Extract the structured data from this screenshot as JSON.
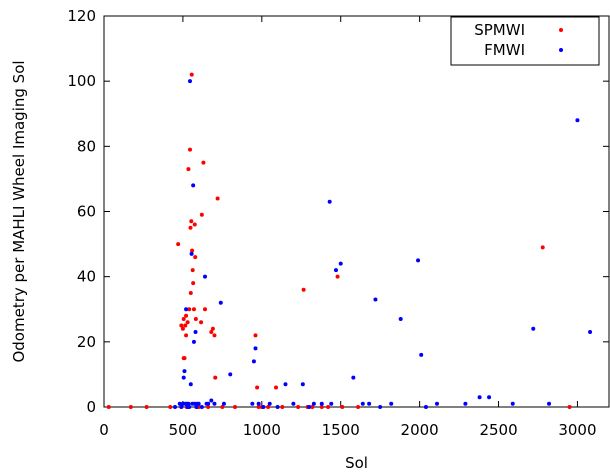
{
  "chart_data": {
    "type": "scatter",
    "title": "",
    "xlabel": "Sol",
    "ylabel": "Odometry per MAHLI Wheel Imaging Sol",
    "xlim": [
      0,
      3200
    ],
    "ylim": [
      0,
      120
    ],
    "xticks": [
      "0",
      "500",
      "1000",
      "1500",
      "2000",
      "2500",
      "3000"
    ],
    "yticks": [
      "0",
      "20",
      "40",
      "60",
      "80",
      "100",
      "120"
    ],
    "legend_position": "top-right",
    "grid": false,
    "series": [
      {
        "name": "SPMWI",
        "color": "#ff0000",
        "points": [
          [
            30,
            0
          ],
          [
            170,
            0
          ],
          [
            270,
            0
          ],
          [
            420,
            0
          ],
          [
            470,
            50
          ],
          [
            490,
            25
          ],
          [
            500,
            24
          ],
          [
            505,
            15
          ],
          [
            505,
            27
          ],
          [
            510,
            15
          ],
          [
            515,
            25
          ],
          [
            520,
            22
          ],
          [
            520,
            28
          ],
          [
            525,
            0
          ],
          [
            530,
            26
          ],
          [
            535,
            73
          ],
          [
            540,
            30
          ],
          [
            545,
            79
          ],
          [
            548,
            55
          ],
          [
            550,
            35
          ],
          [
            553,
            57
          ],
          [
            556,
            102
          ],
          [
            558,
            48
          ],
          [
            562,
            42
          ],
          [
            565,
            38
          ],
          [
            570,
            30
          ],
          [
            575,
            56
          ],
          [
            578,
            46
          ],
          [
            582,
            27
          ],
          [
            590,
            0
          ],
          [
            600,
            0
          ],
          [
            615,
            26
          ],
          [
            620,
            59
          ],
          [
            630,
            75
          ],
          [
            640,
            30
          ],
          [
            660,
            0
          ],
          [
            680,
            23
          ],
          [
            690,
            24
          ],
          [
            700,
            22
          ],
          [
            705,
            9
          ],
          [
            720,
            64
          ],
          [
            750,
            0
          ],
          [
            830,
            0
          ],
          [
            960,
            22
          ],
          [
            970,
            6
          ],
          [
            980,
            0
          ],
          [
            1000,
            0
          ],
          [
            1040,
            0
          ],
          [
            1090,
            6
          ],
          [
            1130,
            0
          ],
          [
            1230,
            0
          ],
          [
            1265,
            36
          ],
          [
            1290,
            0
          ],
          [
            1320,
            0
          ],
          [
            1380,
            0
          ],
          [
            1420,
            0
          ],
          [
            1480,
            40
          ],
          [
            1510,
            0
          ],
          [
            1610,
            0
          ],
          [
            2780,
            49
          ],
          [
            2950,
            0
          ]
        ]
      },
      {
        "name": "FMWI",
        "color": "#0000ff",
        "points": [
          [
            450,
            0
          ],
          [
            480,
            1
          ],
          [
            490,
            0
          ],
          [
            500,
            1
          ],
          [
            505,
            9
          ],
          [
            510,
            11
          ],
          [
            515,
            1
          ],
          [
            520,
            30
          ],
          [
            525,
            1
          ],
          [
            530,
            0
          ],
          [
            535,
            1
          ],
          [
            540,
            0
          ],
          [
            545,
            100
          ],
          [
            550,
            7
          ],
          [
            555,
            47
          ],
          [
            560,
            1
          ],
          [
            565,
            68
          ],
          [
            570,
            20
          ],
          [
            575,
            1
          ],
          [
            580,
            23
          ],
          [
            585,
            0
          ],
          [
            590,
            1
          ],
          [
            600,
            1
          ],
          [
            620,
            0
          ],
          [
            640,
            40
          ],
          [
            650,
            1
          ],
          [
            660,
            1
          ],
          [
            680,
            2
          ],
          [
            700,
            1
          ],
          [
            740,
            32
          ],
          [
            760,
            1
          ],
          [
            800,
            10
          ],
          [
            940,
            1
          ],
          [
            950,
            14
          ],
          [
            960,
            18
          ],
          [
            980,
            1
          ],
          [
            1010,
            0
          ],
          [
            1050,
            1
          ],
          [
            1100,
            0
          ],
          [
            1150,
            7
          ],
          [
            1200,
            1
          ],
          [
            1260,
            7
          ],
          [
            1300,
            0
          ],
          [
            1330,
            1
          ],
          [
            1380,
            1
          ],
          [
            1430,
            63
          ],
          [
            1440,
            1
          ],
          [
            1470,
            42
          ],
          [
            1500,
            44
          ],
          [
            1580,
            9
          ],
          [
            1640,
            1
          ],
          [
            1680,
            1
          ],
          [
            1720,
            33
          ],
          [
            1750,
            0
          ],
          [
            1820,
            1
          ],
          [
            1880,
            27
          ],
          [
            1990,
            45
          ],
          [
            2010,
            16
          ],
          [
            2040,
            0
          ],
          [
            2110,
            1
          ],
          [
            2290,
            1
          ],
          [
            2380,
            3
          ],
          [
            2440,
            3
          ],
          [
            2590,
            1
          ],
          [
            2720,
            24
          ],
          [
            2820,
            1
          ],
          [
            3000,
            88
          ],
          [
            3080,
            23
          ]
        ]
      }
    ]
  }
}
